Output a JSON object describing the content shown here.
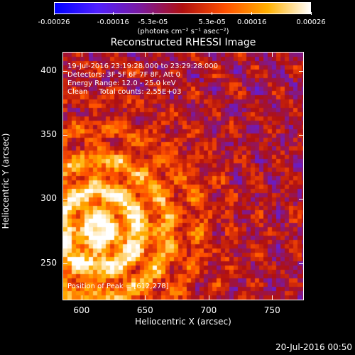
{
  "colorbar": {
    "ticks": [
      "-0.00026",
      "-0.00016",
      "-5.3e-05",
      "5.3e-05",
      "0.00016",
      "0.00026"
    ],
    "units": "(photons cm⁻² s⁻¹ asec⁻²)",
    "colors": [
      "#0000ff",
      "#5020ff",
      "#7a1aa0",
      "#b01010",
      "#ff5000",
      "#ffb000",
      "#ffffff"
    ]
  },
  "title": "Reconstructed RHESSI Image",
  "info": {
    "line1": "19-Jul-2016 23:19:28.000 to 23:29:28.000",
    "line2": "Detectors: 3F 5F 6F 7F 8F, Att 0",
    "line3": "Energy Range: 12.0 - 25.0 keV",
    "line4": "Clean     Total counts: 2.55E+03"
  },
  "peak": "Position of Peak = [612,278]",
  "axes": {
    "xlabel": "Heliocentric X (arcsec)",
    "ylabel": "Heliocentric Y (arcsec)",
    "xticks": [
      "600",
      "650",
      "700",
      "750"
    ],
    "yticks": [
      "400",
      "350",
      "300",
      "250"
    ],
    "xlim": [
      585,
      775
    ],
    "ylim": [
      221,
      415
    ]
  },
  "timestamp": "20-Jul-2016 00:50"
}
